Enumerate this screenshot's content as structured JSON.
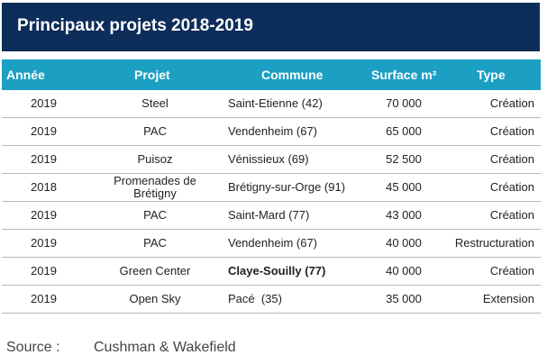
{
  "title": "Principaux projets 2018-2019",
  "headers": {
    "annee": "Année",
    "projet": "Projet",
    "commune": "Commune",
    "surface": "Surface m²",
    "type": "Type"
  },
  "rows": [
    {
      "annee": "2019",
      "projet": "Steel",
      "commune": "Saint-Etienne (42)",
      "surface": "70 000",
      "type": "Création"
    },
    {
      "annee": "2019",
      "projet": "PAC",
      "commune": "Vendenheim (67)",
      "surface": "65 000",
      "type": "Création"
    },
    {
      "annee": "2019",
      "projet": "Puisoz",
      "commune": "Vénissieux (69)",
      "surface": "52 500",
      "type": "Création"
    },
    {
      "annee": "2018",
      "projet": "Promenades de Brétigny",
      "commune": "Brétigny-sur-Orge (91)",
      "surface": "45 000",
      "type": "Création"
    },
    {
      "annee": "2019",
      "projet": "PAC",
      "commune": "Saint-Mard (77)",
      "surface": "43 000",
      "type": "Création"
    },
    {
      "annee": "2019",
      "projet": "PAC",
      "commune": "Vendenheim (67)",
      "surface": "40 000",
      "type": "Restructuration"
    },
    {
      "annee": "2019",
      "projet": "Green Center",
      "commune": "Claye-Souilly (77)",
      "surface": "40 000",
      "type": "Création"
    },
    {
      "annee": "2019",
      "projet": "Open Sky",
      "commune": "Pacé  (35)",
      "surface": "35 000",
      "type": "Extension"
    }
  ],
  "source": {
    "label": "Source :",
    "value": "Cushman & Wakefield"
  },
  "colors": {
    "title_bg": "#0d2d5a",
    "header_bg": "#1ba0c4"
  }
}
